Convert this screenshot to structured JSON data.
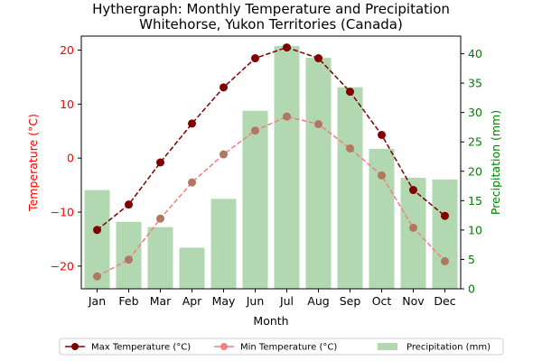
{
  "chart_data": {
    "type": "bar+line",
    "title": "Hythergraph: Monthly Temperature and Precipitation",
    "subtitle": "Whitehorse, Yukon Territories (Canada)",
    "xlabel": "Month",
    "ylabel_left": "Temperature (°C)",
    "ylabel_right": "Precipitation (mm)",
    "categories": [
      "Jan",
      "Feb",
      "Mar",
      "Apr",
      "May",
      "Jun",
      "Jul",
      "Aug",
      "Sep",
      "Oct",
      "Nov",
      "Dec"
    ],
    "ylim_left": [
      -24.2,
      22.6
    ],
    "ylim_right": [
      0,
      43
    ],
    "yticks_left": [
      -20,
      -10,
      0,
      10,
      20
    ],
    "yticks_right": [
      0,
      5,
      10,
      15,
      20,
      25,
      30,
      35,
      40
    ],
    "grid": false,
    "legend_position": "bottom",
    "colors": {
      "temperature_axis": "#ff0000",
      "precip_axis": "#008000",
      "max_line": "#800000",
      "min_line": "#f08080",
      "min_marker": "#b07860",
      "bars": "#b2d8b2"
    },
    "series": [
      {
        "name": "Max Temperature (°C)",
        "type": "line",
        "axis": "left",
        "values": [
          -13.3,
          -8.6,
          -0.8,
          6.4,
          13.1,
          18.5,
          20.5,
          18.5,
          12.3,
          4.3,
          -5.9,
          -10.7
        ]
      },
      {
        "name": "Min Temperature (°C)",
        "type": "line",
        "axis": "left",
        "values": [
          -21.9,
          -18.8,
          -11.2,
          -4.5,
          0.7,
          5.1,
          7.7,
          6.3,
          1.8,
          -3.2,
          -12.9,
          -19.1
        ]
      },
      {
        "name": "Precipitation (mm)",
        "type": "bar",
        "axis": "right",
        "values": [
          16.8,
          11.4,
          10.5,
          7.0,
          15.3,
          30.3,
          41.3,
          39.3,
          34.3,
          23.8,
          18.9,
          18.6
        ]
      }
    ]
  }
}
